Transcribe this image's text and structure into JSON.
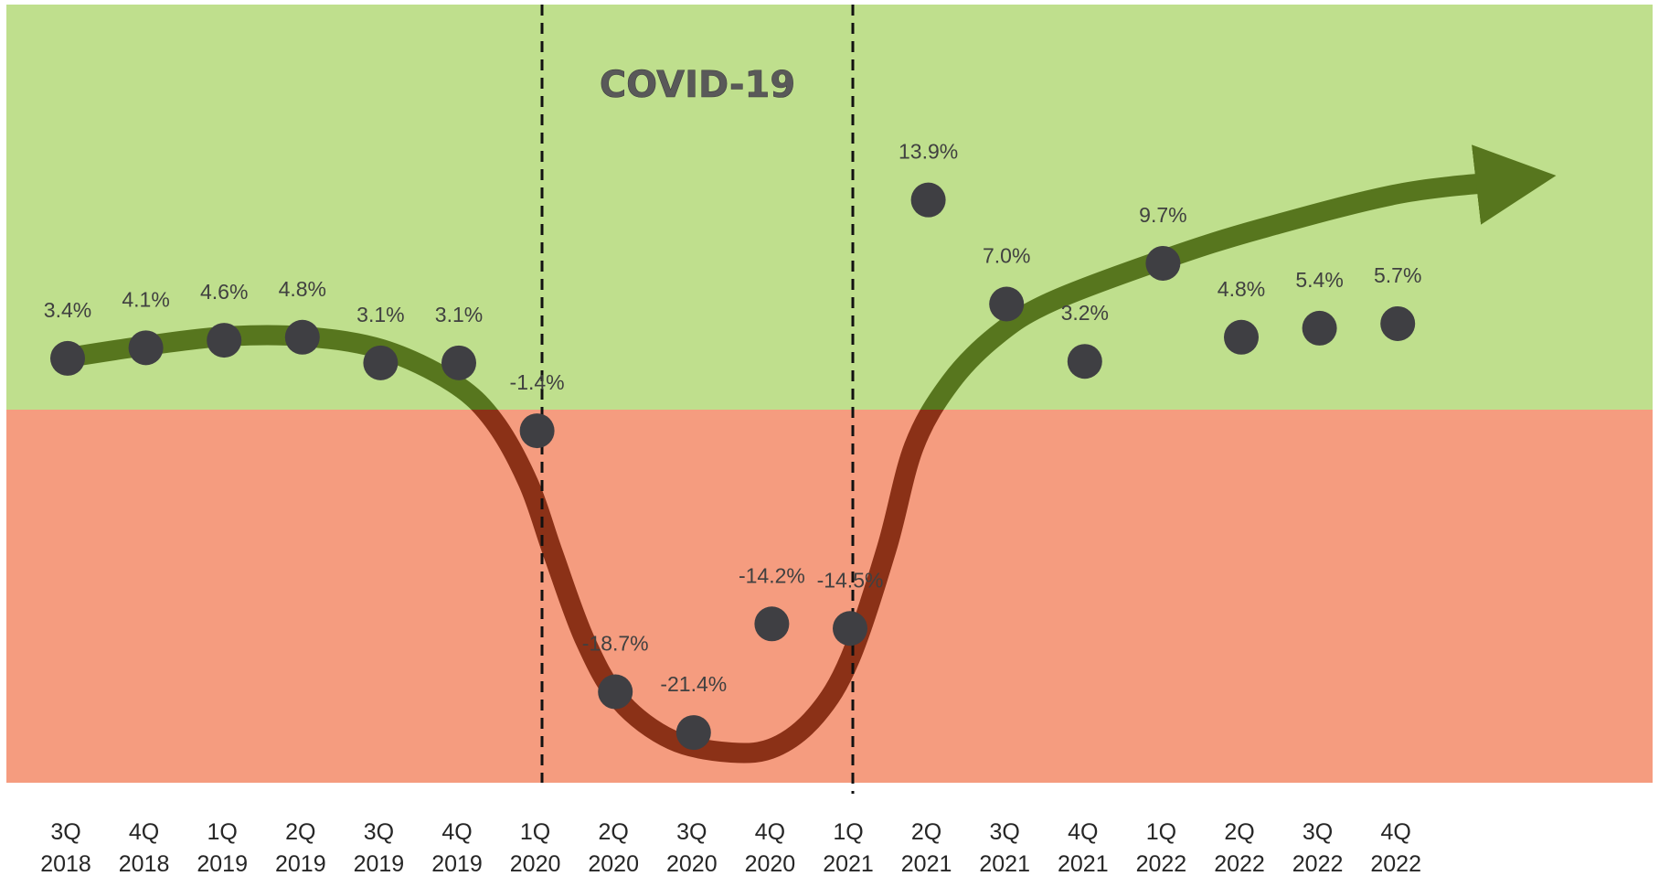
{
  "chart_data": {
    "type": "scatter",
    "title": "",
    "xlabel": "",
    "ylabel": "",
    "annotation": "COVID-19",
    "categories": [
      [
        "3Q",
        "2018"
      ],
      [
        "4Q",
        "2018"
      ],
      [
        "1Q",
        "2019"
      ],
      [
        "2Q",
        "2019"
      ],
      [
        "3Q",
        "2019"
      ],
      [
        "4Q",
        "2019"
      ],
      [
        "1Q",
        "2020"
      ],
      [
        "2Q",
        "2020"
      ],
      [
        "3Q",
        "2020"
      ],
      [
        "4Q",
        "2020"
      ],
      [
        "1Q",
        "2021"
      ],
      [
        "2Q",
        "2021"
      ],
      [
        "3Q",
        "2021"
      ],
      [
        "4Q",
        "2021"
      ],
      [
        "1Q",
        "2022"
      ],
      [
        "2Q",
        "2022"
      ],
      [
        "3Q",
        "2022"
      ],
      [
        "4Q",
        "2022"
      ]
    ],
    "values": [
      3.4,
      4.1,
      4.6,
      4.8,
      3.1,
      3.1,
      -1.4,
      -18.7,
      -21.4,
      -14.2,
      -14.5,
      13.9,
      7.0,
      3.2,
      9.7,
      4.8,
      5.4,
      5.7
    ],
    "labels": [
      "3.4%",
      "4.1%",
      "4.6%",
      "4.8%",
      "3.1%",
      "3.1%",
      "-1.4%",
      "-18.7%",
      "-21.4%",
      "-14.2%",
      "-14.5%",
      "13.9%",
      "7.0%",
      "3.2%",
      "9.7%",
      "4.8%",
      "5.4%",
      "5.7%"
    ],
    "covid_period": [
      "1Q 2020",
      "1Q 2021"
    ],
    "zones": {
      "positive_color": "#bfdf8d",
      "negative_color": "#f59c7f"
    },
    "trend_colors": {
      "positive": "#57761e",
      "negative": "#8b3117"
    },
    "point_color": "#3f3f43",
    "grid": false,
    "legend": "none"
  }
}
